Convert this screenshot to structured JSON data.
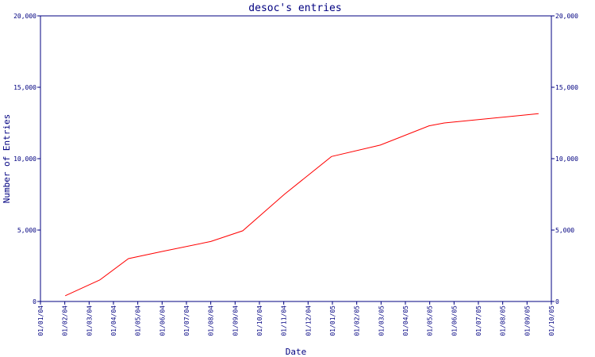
{
  "chart_data": {
    "type": "line",
    "title": "desoc's entries",
    "xlabel": "Date",
    "ylabel": "Number of Entries",
    "ylim": [
      0,
      20000
    ],
    "y_ticks": [
      0,
      5000,
      10000,
      15000,
      20000
    ],
    "y_tick_labels": [
      "0",
      "5,000",
      "10,000",
      "15,000",
      "20,000"
    ],
    "secondary_y_axis": true,
    "x_tick_labels": [
      "01/01/04",
      "01/02/04",
      "01/03/04",
      "01/04/04",
      "01/05/04",
      "01/06/04",
      "01/07/04",
      "01/08/04",
      "01/09/04",
      "01/10/04",
      "01/11/04",
      "01/12/04",
      "01/01/05",
      "01/02/05",
      "01/03/05",
      "01/04/05",
      "01/05/05",
      "01/06/05",
      "01/07/05",
      "01/08/05",
      "01/09/05",
      "01/10/05"
    ],
    "xlim": [
      "2004-01-01",
      "2005-10-01"
    ],
    "grid": false,
    "legend": "none",
    "series": [
      {
        "color": "#ff0000",
        "points": [
          {
            "x": "2004-02-01",
            "y": 400
          },
          {
            "x": "2004-03-15",
            "y": 1500
          },
          {
            "x": "2004-04-20",
            "y": 3000
          },
          {
            "x": "2004-06-01",
            "y": 3500
          },
          {
            "x": "2004-08-01",
            "y": 4200
          },
          {
            "x": "2004-09-10",
            "y": 4950
          },
          {
            "x": "2004-11-01",
            "y": 7500
          },
          {
            "x": "2004-12-30",
            "y": 10150
          },
          {
            "x": "2005-03-01",
            "y": 10950
          },
          {
            "x": "2005-05-01",
            "y": 12300
          },
          {
            "x": "2005-05-20",
            "y": 12500
          },
          {
            "x": "2005-09-15",
            "y": 13150
          }
        ]
      }
    ]
  }
}
